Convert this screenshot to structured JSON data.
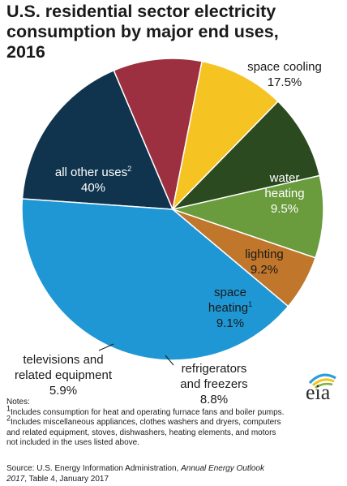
{
  "title": [
    "U.S. residential sector electricity",
    "consumption by major end uses,",
    "2016"
  ],
  "chart_data": {
    "type": "pie",
    "title": "U.S. residential sector electricity consumption by major end uses, 2016",
    "unit": "%",
    "slices": [
      {
        "label": [
          "space cooling"
        ],
        "value": 17.5,
        "value_text": "17.5%",
        "color": "#10344d"
      },
      {
        "label": [
          "water",
          "heating"
        ],
        "value": 9.5,
        "value_text": "9.5%",
        "color": "#9c3040"
      },
      {
        "label": [
          "lighting"
        ],
        "value": 9.2,
        "value_text": "9.2%",
        "color": "#f5c322"
      },
      {
        "label": [
          "space",
          "heating"
        ],
        "sup": "1",
        "value": 9.1,
        "value_text": "9.1%",
        "color": "#2b4a1f"
      },
      {
        "label": [
          "refrigerators",
          "and freezers"
        ],
        "value": 8.8,
        "value_text": "8.8%",
        "color": "#6a9b3c"
      },
      {
        "label": [
          "televisions and",
          "related equipment"
        ],
        "value": 5.9,
        "value_text": "5.9%",
        "color": "#c0762b"
      },
      {
        "label": [
          "all other uses"
        ],
        "sup": "2",
        "value": 40,
        "value_text": "40%",
        "color": "#1f97d4"
      }
    ]
  },
  "notes": {
    "heading": "Notes:",
    "note1_mark": "1",
    "note1": "Includes consumption for heat and operating furnace fans and boiler pumps.",
    "note2_mark": "2",
    "note2_line1": "Includes miscellaneous appliances, clothes washers and dryers, computers",
    "note2_line2": "and related equipment, stoves, dishwashers, heating elements, and motors",
    "note2_line3": "not included in the uses listed above."
  },
  "source": {
    "prefix": "Source: U.S. Energy Information Administration, ",
    "publication": "Annual Energy Outlook",
    "publication2": "2017",
    "suffix": ", Table 4, January 2017"
  },
  "logo": {
    "text": "eia"
  }
}
